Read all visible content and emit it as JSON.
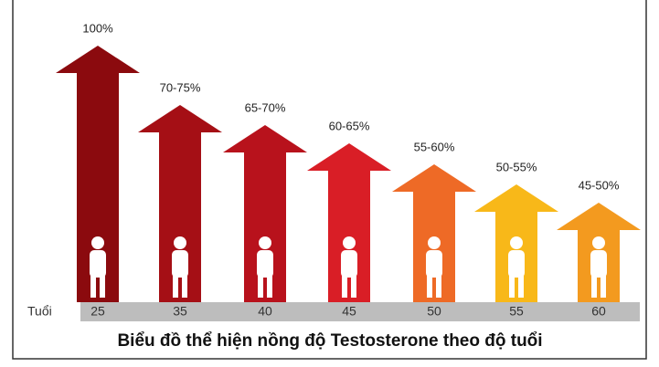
{
  "axis_label": "Tuổi",
  "title": "Biểu đồ thể hiện nồng độ Testosterone theo độ tuổi",
  "arrows": [
    {
      "age": "25",
      "label": "100%",
      "color": "#8b0a0e"
    },
    {
      "age": "35",
      "label": "70-75%",
      "color": "#a50f15"
    },
    {
      "age": "40",
      "label": "65-70%",
      "color": "#b8121c"
    },
    {
      "age": "45",
      "label": "60-65%",
      "color": "#d91e26"
    },
    {
      "age": "50",
      "label": "55-60%",
      "color": "#ee6a26"
    },
    {
      "age": "55",
      "label": "50-55%",
      "color": "#f8b819"
    },
    {
      "age": "60",
      "label": "45-50%",
      "color": "#f39a1f"
    }
  ]
}
